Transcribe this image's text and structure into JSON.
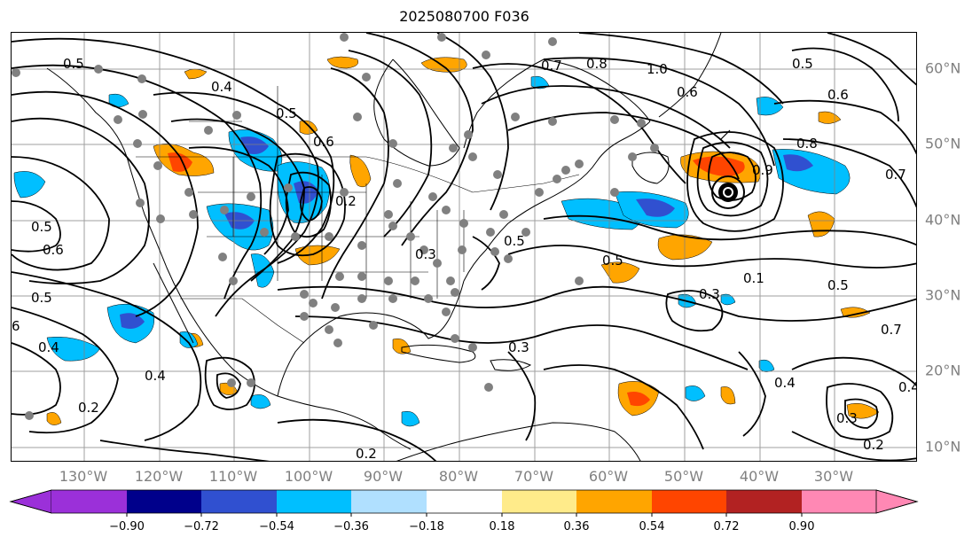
{
  "title": "2025080700 F036",
  "map": {
    "lon_labels": [
      "130°W",
      "120°W",
      "110°W",
      "100°W",
      "90°W",
      "80°W",
      "70°W",
      "60°W",
      "50°W",
      "40°W",
      "30°W"
    ],
    "lat_labels": [
      "60°N",
      "50°N",
      "40°N",
      "30°N",
      "20°N",
      "10°N"
    ],
    "contour_labels": [
      "0.5",
      "0.4",
      "0.5",
      "0.6",
      "0.7",
      "0.8",
      "1.0",
      "0.6",
      "0.8",
      "0.7",
      "0.5",
      "0.5",
      "0.6",
      "0.5",
      "0.4",
      "0.4",
      "0.2",
      "0.2",
      "0.5",
      "0.3",
      "0.2",
      "0.3",
      "0.4",
      "0.9",
      "0.5",
      "0.1",
      "0.3",
      "0.6",
      "0.5",
      "0.3",
      "0.4",
      "0.2",
      "0.7",
      "6"
    ],
    "colors": {
      "contour": "#000000",
      "grid": "#808080",
      "coast": "#000000",
      "stations": "#808080",
      "storm_center": "#000000"
    }
  },
  "colorbar": {
    "ticks": [
      "−0.90",
      "−0.72",
      "−0.54",
      "−0.36",
      "−0.18",
      "0.18",
      "0.36",
      "0.54",
      "0.72",
      "0.90"
    ],
    "colors": [
      "#9b30d9",
      "#00008b",
      "#3050d0",
      "#00bfff",
      "#b0e0ff",
      "#ffffff",
      "#ffeb8a",
      "#ffa500",
      "#ff4500",
      "#b22222",
      "#ff88b4"
    ]
  }
}
